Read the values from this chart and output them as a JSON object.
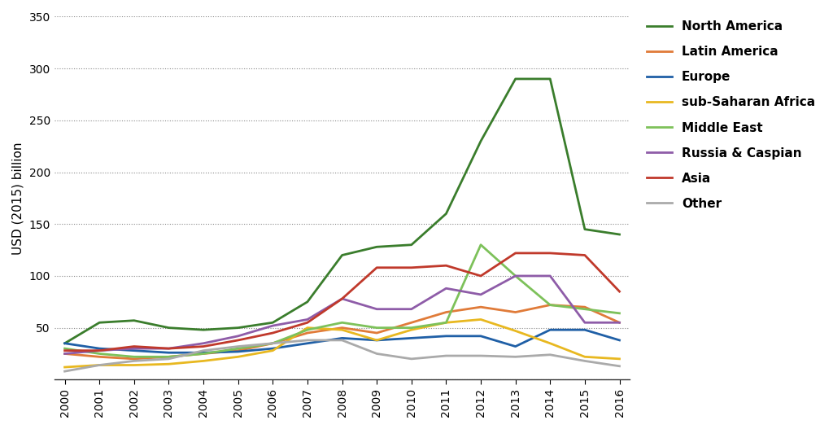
{
  "years": [
    2000,
    2001,
    2002,
    2003,
    2004,
    2005,
    2006,
    2007,
    2008,
    2009,
    2010,
    2011,
    2012,
    2013,
    2014,
    2015,
    2016
  ],
  "series": {
    "North America": {
      "values": [
        35,
        55,
        57,
        50,
        48,
        50,
        55,
        75,
        120,
        128,
        130,
        160,
        230,
        290,
        290,
        145,
        140
      ],
      "color": "#3a7d2c"
    },
    "Latin America": {
      "values": [
        25,
        22,
        20,
        22,
        25,
        28,
        35,
        45,
        50,
        45,
        55,
        65,
        70,
        65,
        72,
        70,
        55
      ],
      "color": "#e07b39"
    },
    "Europe": {
      "values": [
        35,
        30,
        28,
        26,
        26,
        27,
        30,
        35,
        40,
        38,
        40,
        42,
        42,
        32,
        48,
        48,
        38
      ],
      "color": "#1f5fa6"
    },
    "sub-Saharan Africa": {
      "values": [
        12,
        14,
        14,
        15,
        18,
        22,
        28,
        50,
        48,
        38,
        48,
        55,
        58,
        47,
        35,
        22,
        20
      ],
      "color": "#e8b820"
    },
    "Middle East": {
      "values": [
        30,
        25,
        22,
        22,
        25,
        30,
        35,
        48,
        55,
        50,
        50,
        55,
        130,
        100,
        72,
        68,
        64
      ],
      "color": "#7dc15a"
    },
    "Russia & Caspian": {
      "values": [
        25,
        28,
        30,
        30,
        35,
        42,
        52,
        58,
        78,
        68,
        68,
        88,
        82,
        100,
        100,
        55,
        55
      ],
      "color": "#8e5ca8"
    },
    "Asia": {
      "values": [
        28,
        28,
        32,
        30,
        32,
        38,
        45,
        55,
        78,
        108,
        108,
        110,
        100,
        122,
        122,
        120,
        85
      ],
      "color": "#c0392b"
    },
    "Other": {
      "values": [
        8,
        14,
        18,
        20,
        28,
        32,
        35,
        38,
        38,
        25,
        20,
        23,
        23,
        22,
        24,
        18,
        13
      ],
      "color": "#aaaaaa"
    }
  },
  "ylabel": "USD (2015) billion",
  "ylim": [
    0,
    350
  ],
  "yticks": [
    0,
    50,
    100,
    150,
    200,
    250,
    300,
    350
  ],
  "xlim": [
    2000,
    2016
  ],
  "grid_color": "#888888",
  "background_color": "#ffffff",
  "legend_order": [
    "North America",
    "Latin America",
    "Europe",
    "sub-Saharan Africa",
    "Middle East",
    "Russia & Caspian",
    "Asia",
    "Other"
  ]
}
